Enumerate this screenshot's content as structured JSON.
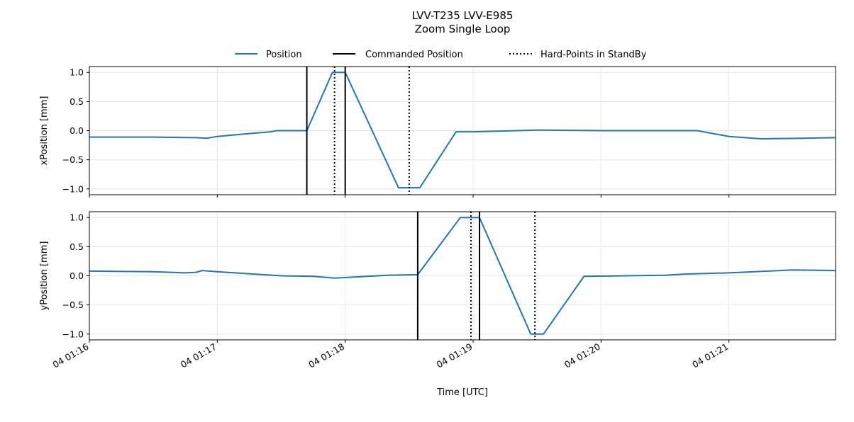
{
  "chart_data": {
    "type": "line",
    "title": "LVV-T235 LVV-E985",
    "subtitle": "Zoom Single Loop",
    "xlabel": "Time [UTC]",
    "legend": {
      "placement": "top-center",
      "entries": [
        {
          "label": "Position",
          "style": "solid",
          "color": "#1f77b4"
        },
        {
          "label": "Commanded Position",
          "style": "solid",
          "color": "#000000"
        },
        {
          "label": "Hard-Points in StandBy",
          "style": "dotted",
          "color": "#000000"
        }
      ]
    },
    "x_ticks": [
      {
        "t": "01:16",
        "label": "04 01:16"
      },
      {
        "t": "01:17",
        "label": "04 01:17"
      },
      {
        "t": "01:18",
        "label": "04 01:18"
      },
      {
        "t": "01:19",
        "label": "04 01:19"
      },
      {
        "t": "01:20",
        "label": "04 01:20"
      },
      {
        "t": "01:21",
        "label": "04 01:21"
      }
    ],
    "x_range": [
      "01:16:00",
      "01:21:50"
    ],
    "grid": true,
    "panels": [
      {
        "ylabel": "xPosition [mm]",
        "ylim": [
          -1.1,
          1.1
        ],
        "y_ticks": [
          "1.0",
          "0.5",
          "0.0",
          "−0.5",
          "−1.0"
        ],
        "y_tick_values": [
          1.0,
          0.5,
          0.0,
          -0.5,
          -1.0
        ],
        "commanded_times": [
          "01:17:42",
          "01:18:00"
        ],
        "standby_times": [
          "01:17:55",
          "01:18:30"
        ],
        "series": [
          {
            "name": "Position",
            "points": [
              [
                "01:16:00",
                -0.11
              ],
              [
                "01:16:30",
                -0.11
              ],
              [
                "01:16:50",
                -0.12
              ],
              [
                "01:16:55",
                -0.13
              ],
              [
                "01:17:00",
                -0.1
              ],
              [
                "01:17:15",
                -0.05
              ],
              [
                "01:17:25",
                -0.02
              ],
              [
                "01:17:28",
                0.0
              ],
              [
                "01:17:42",
                0.0
              ],
              [
                "01:17:54",
                1.0
              ],
              [
                "01:18:00",
                1.0
              ],
              [
                "01:18:25",
                -0.98
              ],
              [
                "01:18:35",
                -0.98
              ],
              [
                "01:18:52",
                -0.02
              ],
              [
                "01:19:00",
                -0.02
              ],
              [
                "01:19:30",
                0.01
              ],
              [
                "01:20:00",
                0.0
              ],
              [
                "01:20:45",
                0.0
              ],
              [
                "01:21:00",
                -0.1
              ],
              [
                "01:21:15",
                -0.14
              ],
              [
                "01:21:35",
                -0.13
              ],
              [
                "01:21:50",
                -0.12
              ]
            ]
          }
        ]
      },
      {
        "ylabel": "yPosition [mm]",
        "ylim": [
          -1.1,
          1.1
        ],
        "y_ticks": [
          "1.0",
          "0.5",
          "0.0",
          "−0.5",
          "−1.0"
        ],
        "y_tick_values": [
          1.0,
          0.5,
          0.0,
          -0.5,
          -1.0
        ],
        "commanded_times": [
          "01:18:34",
          "01:19:03"
        ],
        "standby_times": [
          "01:18:59",
          "01:19:29"
        ],
        "series": [
          {
            "name": "Position",
            "points": [
              [
                "01:16:00",
                0.08
              ],
              [
                "01:16:30",
                0.07
              ],
              [
                "01:16:45",
                0.05
              ],
              [
                "01:16:50",
                0.06
              ],
              [
                "01:16:53",
                0.09
              ],
              [
                "01:17:00",
                0.07
              ],
              [
                "01:17:30",
                0.0
              ],
              [
                "01:17:45",
                -0.01
              ],
              [
                "01:17:55",
                -0.04
              ],
              [
                "01:18:05",
                -0.02
              ],
              [
                "01:18:20",
                0.01
              ],
              [
                "01:18:34",
                0.02
              ],
              [
                "01:18:54",
                1.0
              ],
              [
                "01:19:03",
                1.0
              ],
              [
                "01:19:27",
                -1.0
              ],
              [
                "01:19:33",
                -1.0
              ],
              [
                "01:19:52",
                -0.01
              ],
              [
                "01:20:30",
                0.01
              ],
              [
                "01:20:40",
                0.03
              ],
              [
                "01:21:00",
                0.05
              ],
              [
                "01:21:30",
                0.1
              ],
              [
                "01:21:50",
                0.09
              ]
            ]
          }
        ]
      }
    ]
  }
}
